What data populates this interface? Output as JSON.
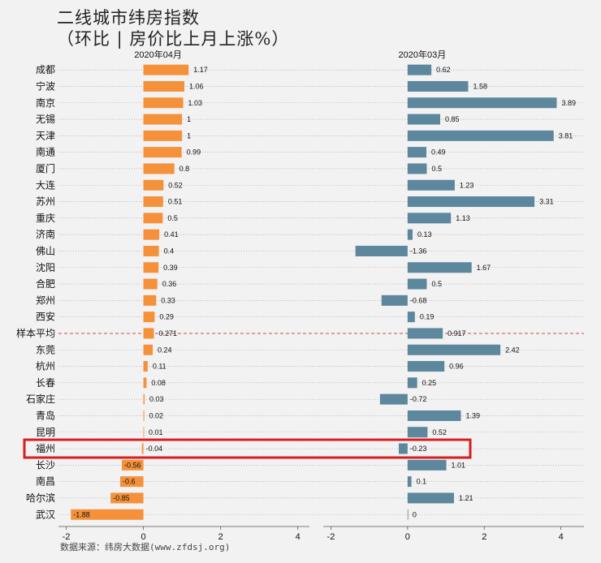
{
  "title": "二线城市纬房指数",
  "subtitle": "（环比 | 房价比上月上涨%）",
  "source": "数据来源：纬房大数据(www.zfdsj.org)",
  "colors": {
    "left_bar": "#F5913A",
    "right_bar": "#5C879D",
    "avg_line": "#C0504D",
    "highlight": "#D81E1E"
  },
  "highlight_category": "福州",
  "chart_data": [
    {
      "type": "bar",
      "orientation": "horizontal",
      "title": "2020年04月",
      "categories": [
        "成都",
        "宁波",
        "南京",
        "无锡",
        "天津",
        "南通",
        "厦门",
        "大连",
        "苏州",
        "重庆",
        "济南",
        "佛山",
        "沈阳",
        "合肥",
        "郑州",
        "西安",
        "样本平均",
        "东莞",
        "杭州",
        "长春",
        "石家庄",
        "青岛",
        "昆明",
        "福州",
        "长沙",
        "南昌",
        "哈尔滨",
        "武汉"
      ],
      "values": [
        1.17,
        1.06,
        1.03,
        1,
        1,
        0.99,
        0.8,
        0.52,
        0.51,
        0.5,
        0.41,
        0.4,
        0.39,
        0.36,
        0.33,
        0.29,
        0.271,
        0.24,
        0.11,
        0.08,
        0.03,
        0.02,
        0.01,
        -0.04,
        -0.56,
        -0.6,
        -0.85,
        -1.88
      ],
      "value_labels": [
        "1.17",
        "1.06",
        "1.03",
        "1",
        "1",
        "0.99",
        "0.8",
        "0.52",
        "0.51",
        "0.5",
        "0.41",
        "0.4",
        "0.39",
        "0.36",
        "0.33",
        "0.29",
        "0.271",
        "0.24",
        "0.11",
        "0.08",
        "0.03",
        "0.02",
        "0.01",
        "-0.04",
        "-0.56",
        "-0.6",
        "-0.85",
        "-1.88"
      ],
      "xlim": [
        -2.2,
        4.3
      ],
      "xticks": [
        -2,
        0,
        2,
        4
      ],
      "grid": true
    },
    {
      "type": "bar",
      "orientation": "horizontal",
      "title": "2020年03月",
      "categories": [
        "成都",
        "宁波",
        "南京",
        "无锡",
        "天津",
        "南通",
        "厦门",
        "大连",
        "苏州",
        "重庆",
        "济南",
        "佛山",
        "沈阳",
        "合肥",
        "郑州",
        "西安",
        "样本平均",
        "东莞",
        "杭州",
        "长春",
        "石家庄",
        "青岛",
        "昆明",
        "福州",
        "长沙",
        "南昌",
        "哈尔滨",
        "武汉"
      ],
      "values": [
        0.62,
        1.58,
        3.89,
        0.85,
        3.81,
        0.49,
        0.5,
        1.23,
        3.31,
        1.13,
        0.13,
        -1.36,
        1.67,
        0.5,
        -0.68,
        0.19,
        0.917,
        2.42,
        0.96,
        0.25,
        -0.72,
        1.39,
        0.52,
        -0.23,
        1.01,
        0.1,
        1.21,
        0
      ],
      "value_labels": [
        "0.62",
        "1.58",
        "3.89",
        "0.85",
        "3.81",
        "0.49",
        "0.5",
        "1.23",
        "3.31",
        "1.13",
        "0.13",
        "-1.36",
        "1.67",
        "0.5",
        "-0.68",
        "0.19",
        "0.917",
        "2.42",
        "0.96",
        "0.25",
        "-0.72",
        "1.39",
        "0.52",
        "-0.23",
        "1.01",
        "0.1",
        "1.21",
        "0"
      ],
      "xlim": [
        -2.2,
        4.6
      ],
      "xticks": [
        -2,
        0,
        2,
        4
      ],
      "grid": true
    }
  ]
}
